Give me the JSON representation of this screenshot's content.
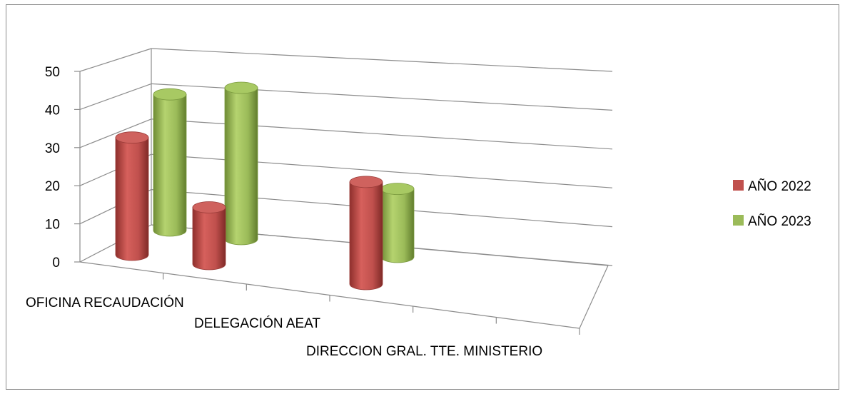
{
  "chart_data": {
    "type": "bar",
    "style": "3d-cylinder",
    "title": "",
    "xlabel": "",
    "ylabel": "",
    "ylim": [
      0,
      50
    ],
    "yticks": [
      0,
      10,
      20,
      30,
      40,
      50
    ],
    "grid": true,
    "legend_position": "right",
    "categories": [
      "OFICINA RECAUDACIÓN",
      "DELEGACIÓN AEAT",
      "DIRECCION GRAL. TTE. MINISTERIO"
    ],
    "series": [
      {
        "name": "AÑO 2022",
        "color": "#c0504d",
        "values": [
          31,
          15,
          27
        ]
      },
      {
        "name": "AÑO 2023",
        "color": "#9bbb59",
        "values": [
          36,
          40,
          18
        ]
      }
    ]
  }
}
